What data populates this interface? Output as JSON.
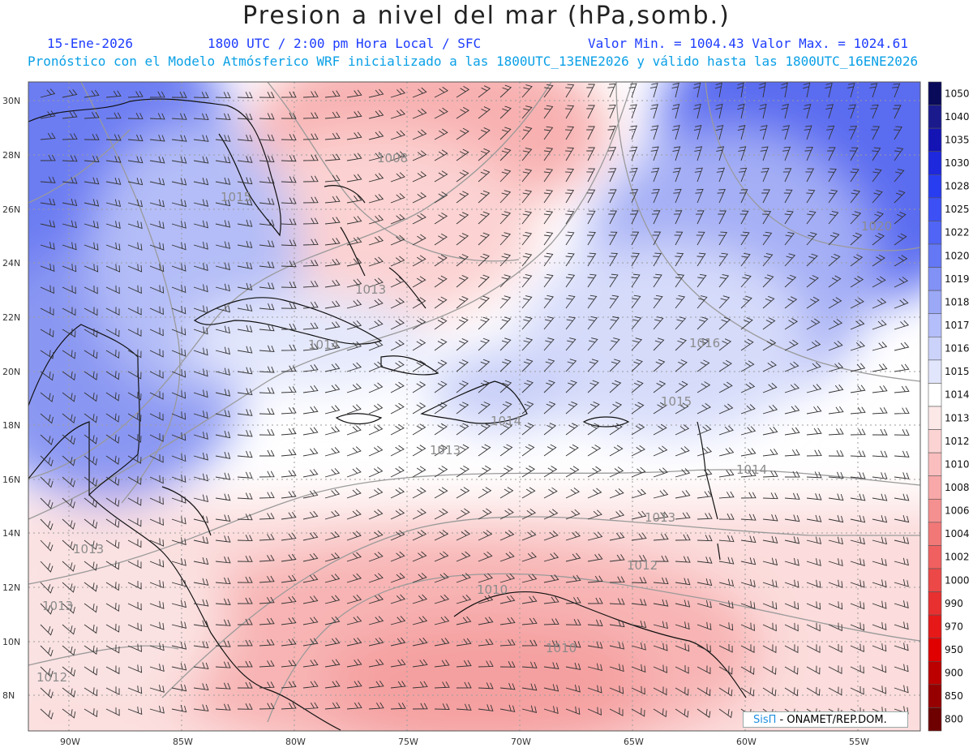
{
  "header": {
    "title": "Presion a nivel del mar (hPa,somb.)",
    "date": "15-Ene-2026",
    "time": "1800 UTC / 2:00 pm Hora Local / SFC",
    "min_max": "Valor Min. = 1004.43  Valor Max. = 1024.61",
    "forecast": "Pronóstico con el Modelo Atmósferico WRF inicializado a las 1800UTC_13ENE2026 y válido hasta las  1800UTC_16ENE2026"
  },
  "axes": {
    "lat_labels": [
      "30N",
      "28N",
      "26N",
      "24N",
      "22N",
      "20N",
      "18N",
      "16N",
      "14N",
      "12N",
      "10N",
      "8N"
    ],
    "lon_labels": [
      "90W",
      "85W",
      "80W",
      "75W",
      "70W",
      "65W",
      "60W",
      "55W"
    ]
  },
  "legend": {
    "labels": [
      "1050",
      "1040",
      "1035",
      "1030",
      "1028",
      "1025",
      "1022",
      "1020",
      "1019",
      "1018",
      "1017",
      "1016",
      "1015",
      "1014",
      "1013",
      "1012",
      "1010",
      "1008",
      "1006",
      "1004",
      "1002",
      "1000",
      "990",
      "970",
      "950",
      "900",
      "850",
      "800"
    ],
    "colors": [
      "#0a0a5a",
      "#1a1a8c",
      "#1414b4",
      "#1e28dc",
      "#283cf0",
      "#3c50f5",
      "#5064f5",
      "#6478f5",
      "#8291f5",
      "#9ba8f5",
      "#b4befa",
      "#ccd3fa",
      "#e2e6fc",
      "#ffffff",
      "#fde8e8",
      "#fcd3d3",
      "#fabebe",
      "#f8a8a8",
      "#f59090",
      "#f27878",
      "#f06060",
      "#ec4848",
      "#e83030",
      "#e61818",
      "#e00000",
      "#bc0000",
      "#960000",
      "#6e0000"
    ]
  },
  "isobar_labels": [
    "1008",
    "1015",
    "1013",
    "1014",
    "1016",
    "1015",
    "1014",
    "1013",
    "1014",
    "1013",
    "1012",
    "1010",
    "1010",
    "1013",
    "1013",
    "1012",
    "1020"
  ],
  "credit": {
    "brand": "SisΠ",
    "org": " - ONAMET/REP.DOM."
  }
}
